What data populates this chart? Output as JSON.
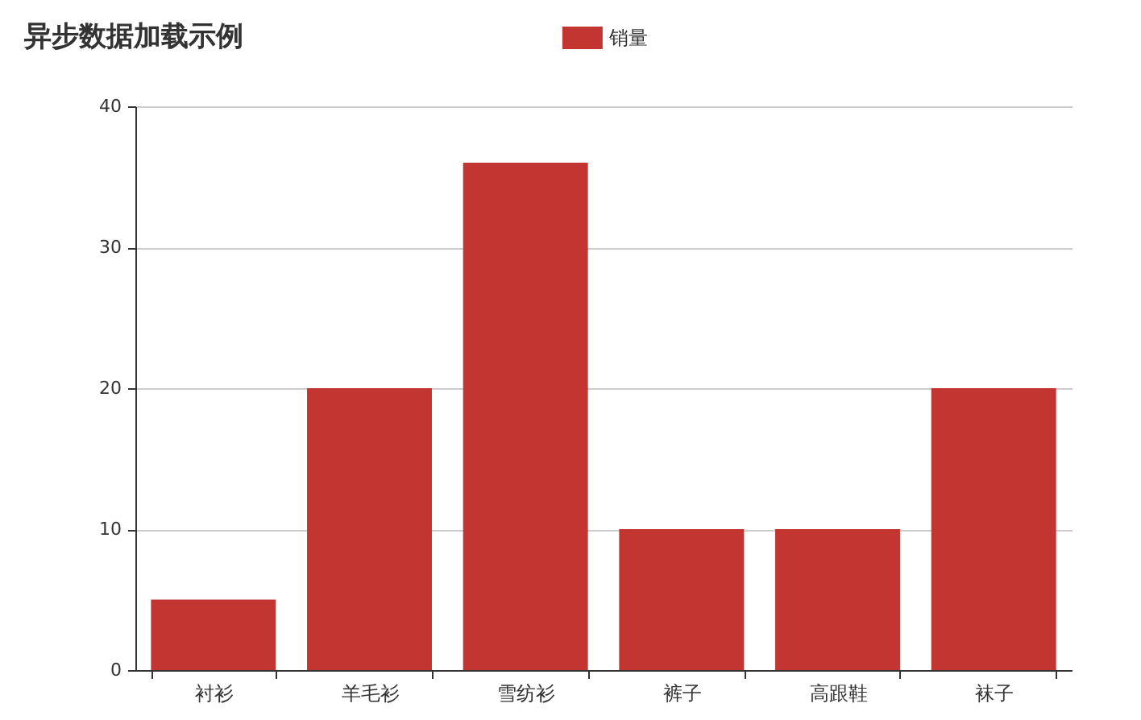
{
  "chart_data": {
    "type": "bar",
    "title": "异步数据加载示例",
    "categories": [
      "衬衫",
      "羊毛衫",
      "雪纺衫",
      "裤子",
      "高跟鞋",
      "袜子"
    ],
    "series": [
      {
        "name": "销量",
        "color": "#c23531",
        "values": [
          5,
          20,
          36,
          10,
          10,
          20
        ]
      }
    ],
    "ylim": [
      0,
      40
    ],
    "yticks": [
      0,
      10,
      20,
      30,
      40
    ],
    "grid": "y",
    "legend": "top"
  }
}
